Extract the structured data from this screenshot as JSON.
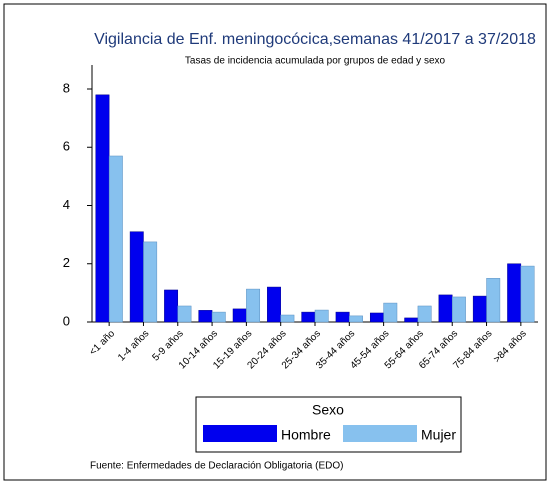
{
  "chart_data": {
    "type": "bar",
    "title": "Vigilancia de Enf. meningocócica,semanas 41/2017 a 37/2018",
    "subtitle": "Tasas de incidencia acumulada por grupos de edad y sexo",
    "categories": [
      "<1 año",
      "1-4 años",
      "5-9 años",
      "10-14 años",
      "15-19 años",
      "20-24 años",
      "25-34 años",
      "35-44 años",
      "45-54 años",
      "55-64 años",
      "65-74 años",
      "75-84 años",
      ">84 años"
    ],
    "series": [
      {
        "name": "Hombre",
        "color": "#0000ee",
        "values": [
          7.8,
          3.1,
          1.1,
          0.4,
          0.45,
          1.2,
          0.34,
          0.34,
          0.31,
          0.14,
          0.93,
          0.89,
          2.0
        ]
      },
      {
        "name": "Mujer",
        "color": "#87c1ee",
        "values": [
          5.7,
          2.75,
          0.55,
          0.34,
          1.13,
          0.24,
          0.41,
          0.21,
          0.65,
          0.55,
          0.86,
          1.5,
          1.92
        ]
      }
    ],
    "legend_title": "Sexo",
    "note": "Fuente: Enfermedades de Declaración Obligatoria (EDO)",
    "ylim": [
      0,
      8
    ],
    "yticks": [
      0,
      2,
      4,
      6,
      8
    ]
  }
}
